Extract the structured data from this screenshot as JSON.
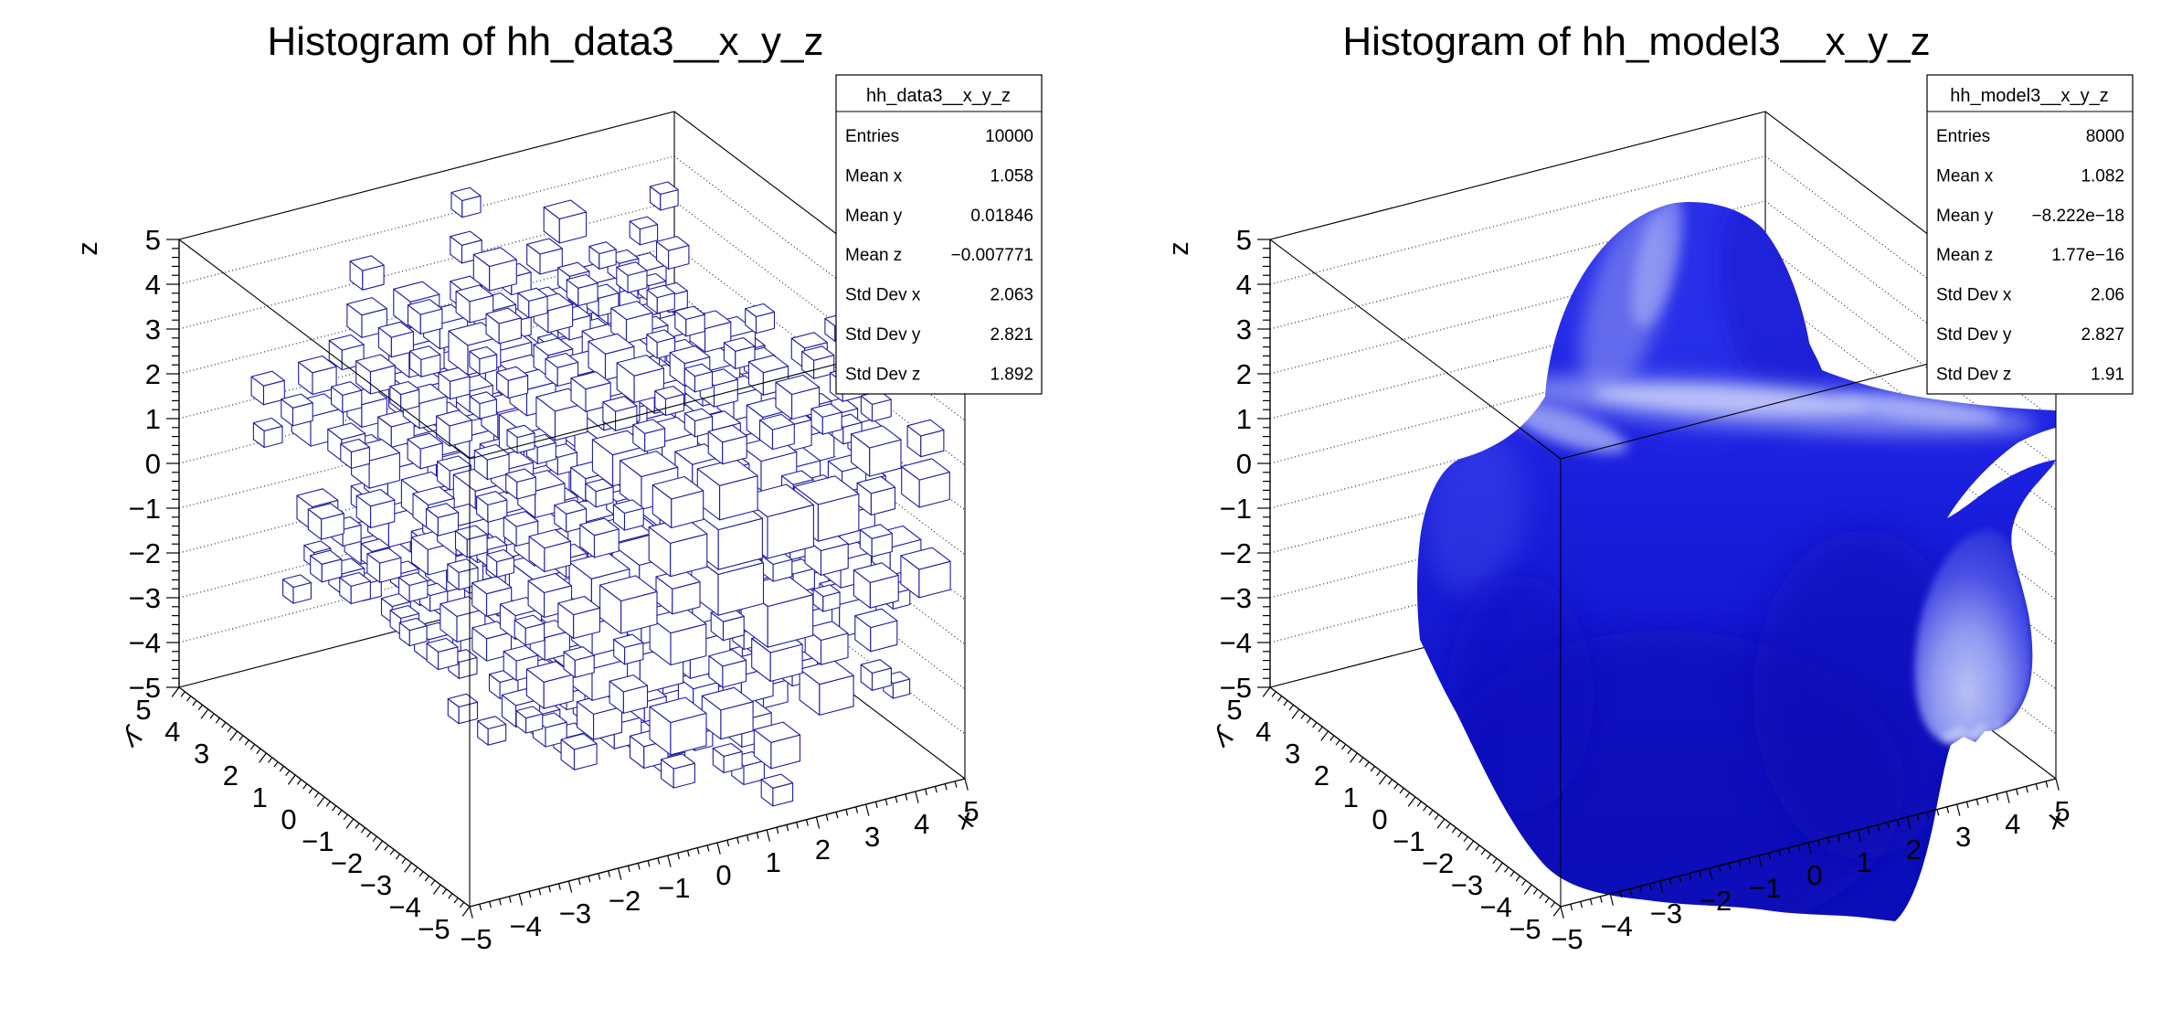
{
  "app": {
    "background": "#ffffff"
  },
  "pads": [
    {
      "title": "Histogram of hh_data3__x_y_z",
      "stats": {
        "title": "hh_data3__x_y_z",
        "rows": [
          {
            "label": "Entries",
            "value": "10000"
          },
          {
            "label": "Mean x",
            "value": "1.058"
          },
          {
            "label": "Mean y",
            "value": "0.01846"
          },
          {
            "label": "Mean z",
            "value": "−0.007771"
          },
          {
            "label": "Std Dev x",
            "value": "2.063"
          },
          {
            "label": "Std Dev y",
            "value": "2.821"
          },
          {
            "label": "Std Dev z",
            "value": "1.892"
          }
        ]
      },
      "axes": {
        "x": {
          "title": "x",
          "min": -5,
          "max": 5,
          "tick_labels": [
            "−5",
            "−4",
            "−3",
            "−2",
            "−1",
            "0",
            "1",
            "2",
            "3",
            "4",
            "5"
          ]
        },
        "y": {
          "title": "y",
          "min": -5,
          "max": 5,
          "tick_labels": [
            "−5",
            "−4",
            "−3",
            "−2",
            "−1",
            "0",
            "1",
            "2",
            "3",
            "4",
            "5"
          ]
        },
        "z": {
          "title": "z",
          "min": -5,
          "max": 5,
          "tick_labels": [
            "−5",
            "−4",
            "−3",
            "−2",
            "−1",
            "0",
            "1",
            "2",
            "3",
            "4",
            "5"
          ]
        }
      },
      "content": {
        "type": "box3d",
        "line_color": "#1d1da0",
        "seed": 1337
      }
    },
    {
      "title": "Histogram of hh_model3__x_y_z",
      "stats": {
        "title": "hh_model3__x_y_z",
        "rows": [
          {
            "label": "Entries",
            "value": "8000"
          },
          {
            "label": "Mean x",
            "value": "1.082"
          },
          {
            "label": "Mean y",
            "value": "−8.222e−18"
          },
          {
            "label": "Mean z",
            "value": "1.77e−16"
          },
          {
            "label": "Std Dev x",
            "value": "2.06"
          },
          {
            "label": "Std Dev y",
            "value": "2.827"
          },
          {
            "label": "Std Dev z",
            "value": "1.91"
          }
        ]
      },
      "axes": {
        "x": {
          "title": "x",
          "min": -5,
          "max": 5,
          "tick_labels": [
            "−5",
            "−4",
            "−3",
            "−2",
            "−1",
            "0",
            "1",
            "2",
            "3",
            "4",
            "5"
          ]
        },
        "y": {
          "title": "y",
          "min": -5,
          "max": 5,
          "tick_labels": [
            "−5",
            "−4",
            "−3",
            "−2",
            "−1",
            "0",
            "1",
            "2",
            "3",
            "4",
            "5"
          ]
        },
        "z": {
          "title": "z",
          "min": -5,
          "max": 5,
          "tick_labels": [
            "−5",
            "−4",
            "−3",
            "−2",
            "−1",
            "0",
            "1",
            "2",
            "3",
            "4",
            "5"
          ]
        }
      },
      "content": {
        "type": "isosurface",
        "surface_color": "#1a1ede"
      }
    }
  ],
  "chart_data": [
    {
      "type": "histogram3d",
      "render_style": "box: wireframe boxes on a 10x10x10 grid, box volume proportional to bin content",
      "name": "hh_data3__x_y_z",
      "title": "Histogram of hh_data3__x_y_z",
      "entries": 10000,
      "mean": {
        "x": 1.058,
        "y": 0.01846,
        "z": -0.007771
      },
      "std_dev": {
        "x": 2.063,
        "y": 2.821,
        "z": 1.892
      },
      "x_range": [
        -5,
        5
      ],
      "y_range": [
        -5,
        5
      ],
      "z_range": [
        -5,
        5
      ],
      "axis_titles": {
        "x": "x",
        "y": "y",
        "z": "z"
      },
      "grid": "dotted gridlines on back walls at integer z levels",
      "distribution_note": "bin contents consistent with x~Gauss(1.06,2.06), y~uniform(-5,5), z~Gauss(0,1.89); boxes larger toward +x and mid z",
      "marker_color": "#1d1da0"
    },
    {
      "type": "histogram3d",
      "render_style": "isosurface: solid shaded blue GL surface (dome on top, broad body, open tube cut by the x=+5 wall)",
      "name": "hh_model3__x_y_z",
      "title": "Histogram of hh_model3__x_y_z",
      "entries": 8000,
      "mean": {
        "x": 1.082,
        "y": -8.222e-18,
        "z": 1.77e-16
      },
      "std_dev": {
        "x": 2.06,
        "y": 2.827,
        "z": 1.91
      },
      "x_range": [
        -5,
        5
      ],
      "y_range": [
        -5,
        5
      ],
      "z_range": [
        -5,
        5
      ],
      "axis_titles": {
        "x": "x",
        "y": "y",
        "z": "z"
      },
      "grid": "dotted gridlines on back walls at integer z levels",
      "surface_color": "#1a1ede"
    }
  ]
}
